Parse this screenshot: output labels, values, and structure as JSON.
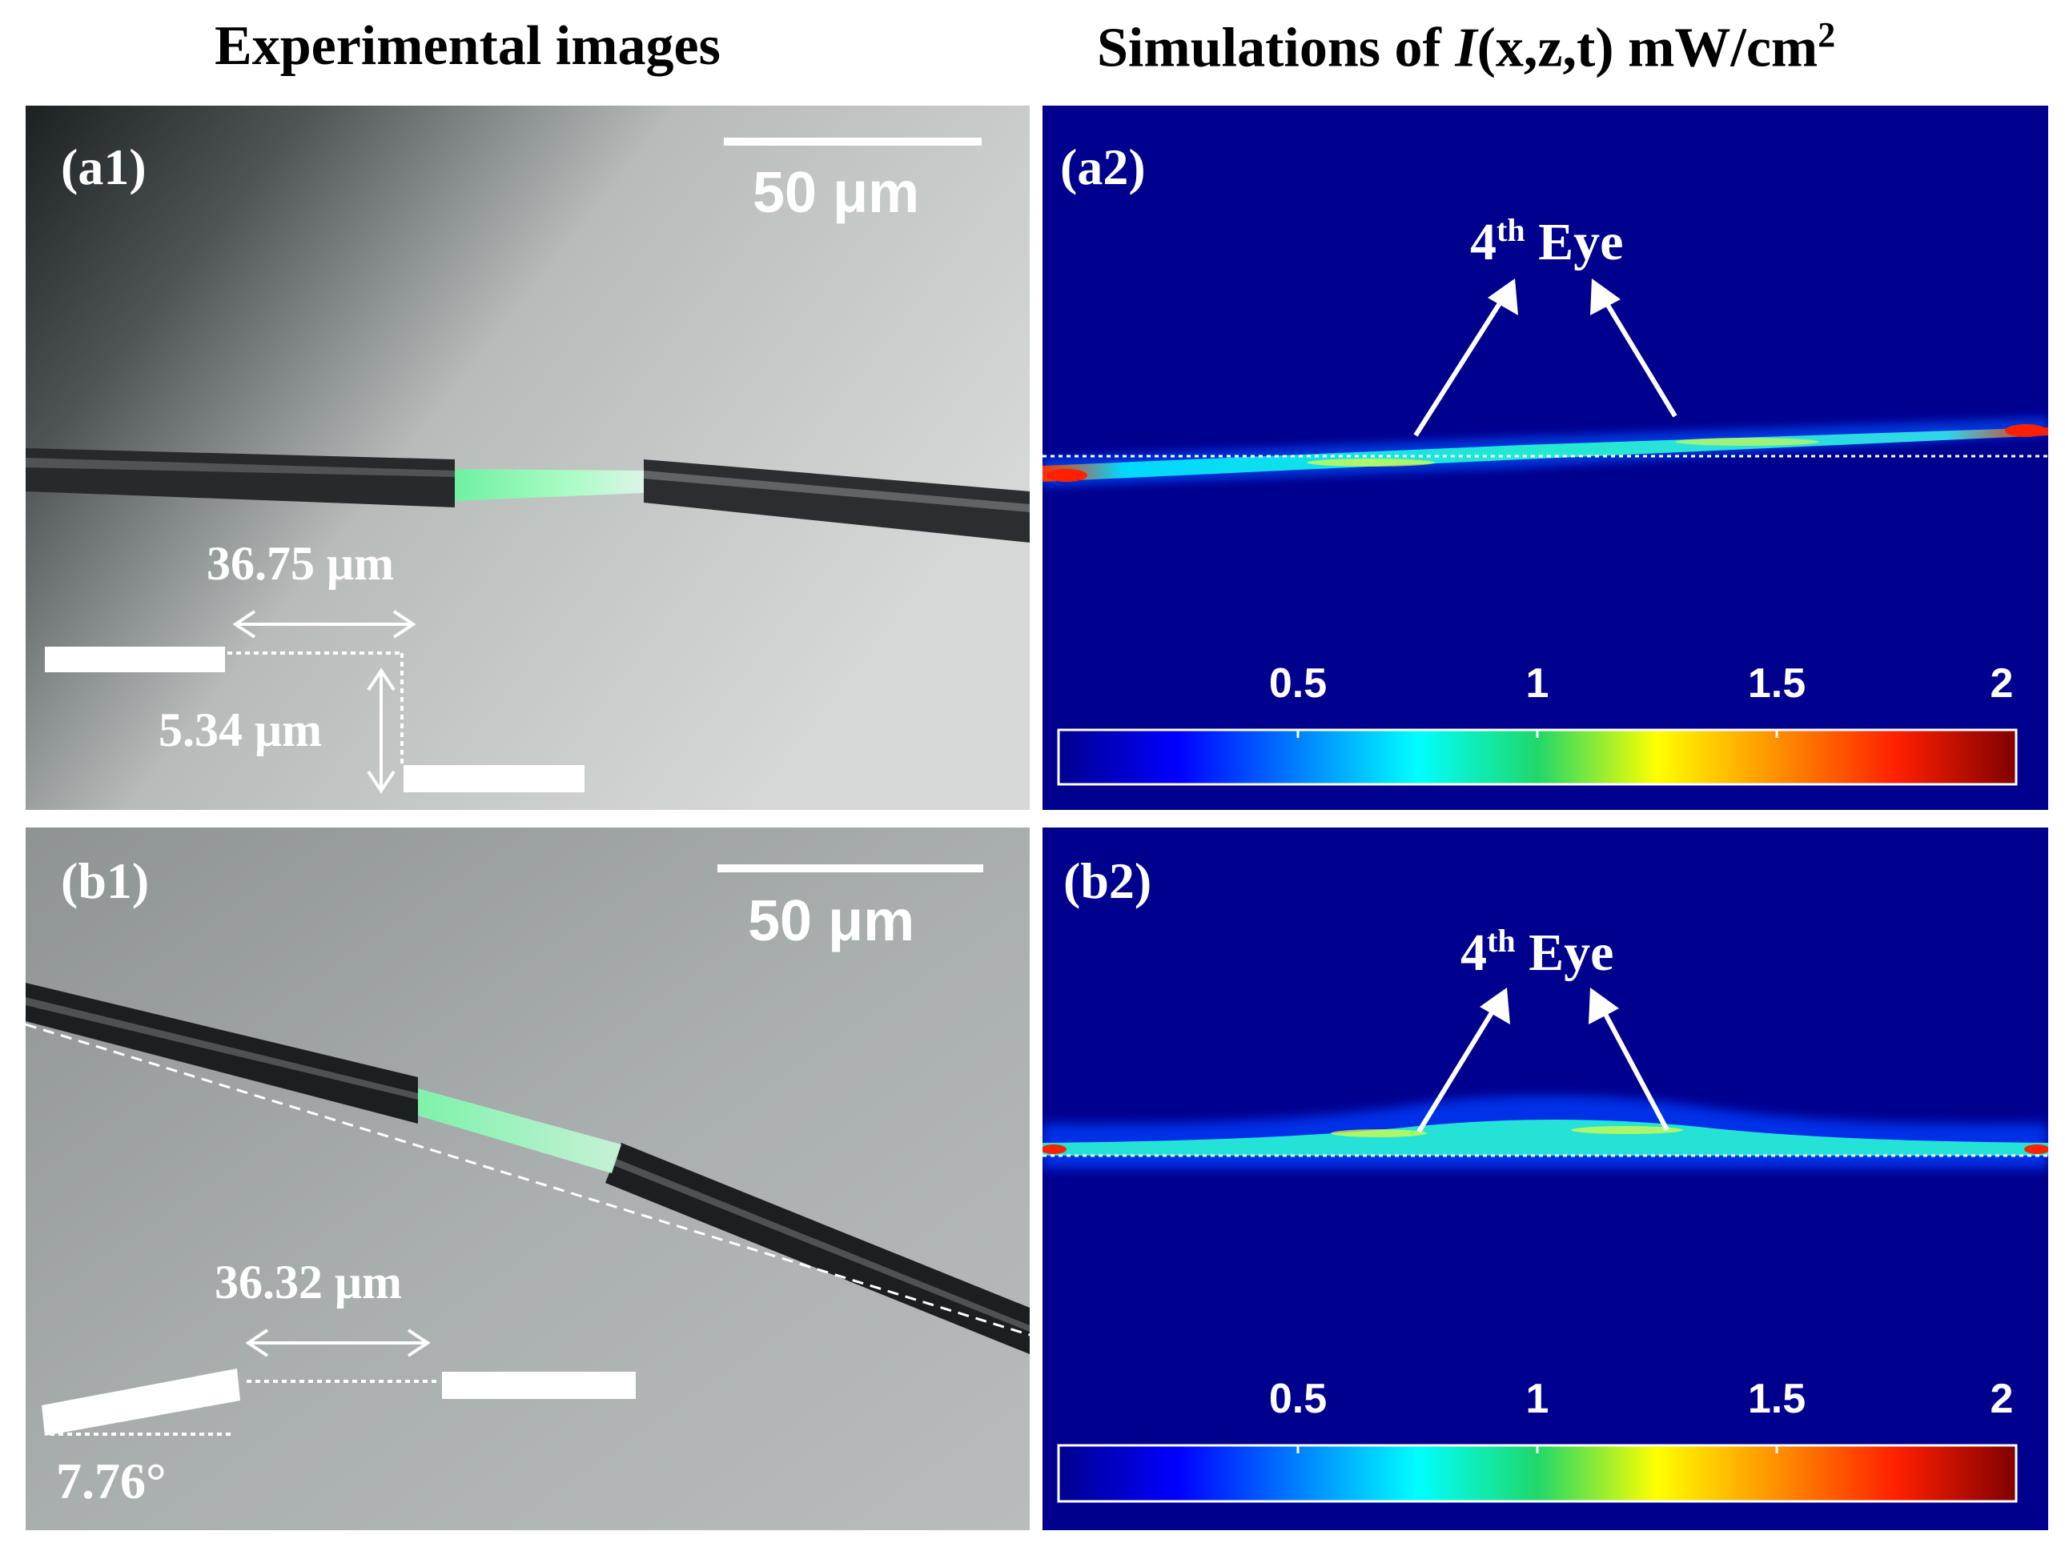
{
  "titles": {
    "left": "Experimental images",
    "right_prefix": "Simulations of ",
    "right_symbol": "I",
    "right_args": "(x,z,t)",
    "right_unit_base": " mW/cm",
    "right_unit_exp": "2"
  },
  "panels": {
    "a1": {
      "label": "(a1)",
      "scale_bar": "50 μm",
      "horizontal_offset": "36.75 μm",
      "vertical_offset": "5.34 μm"
    },
    "a2": {
      "label": "(a2)",
      "eye_prefix": "4",
      "eye_sup": "th",
      "eye_suffix": " Eye"
    },
    "b1": {
      "label": "(b1)",
      "scale_bar": "50 μm",
      "horizontal_offset": "36.32 μm",
      "angle": "7.76°"
    },
    "b2": {
      "label": "(b2)",
      "eye_prefix": "4",
      "eye_sup": "th",
      "eye_suffix": " Eye"
    }
  },
  "colorbar": {
    "ticks": [
      "0.5",
      "1",
      "1.5",
      "2"
    ],
    "tick_values": [
      0.5,
      1,
      1.5,
      2
    ],
    "range": [
      0,
      2
    ]
  },
  "colors": {
    "sim_background": "#00008f",
    "fiber": "#1e2022",
    "light": "#7dff9c",
    "annotation": "#ffffff"
  }
}
